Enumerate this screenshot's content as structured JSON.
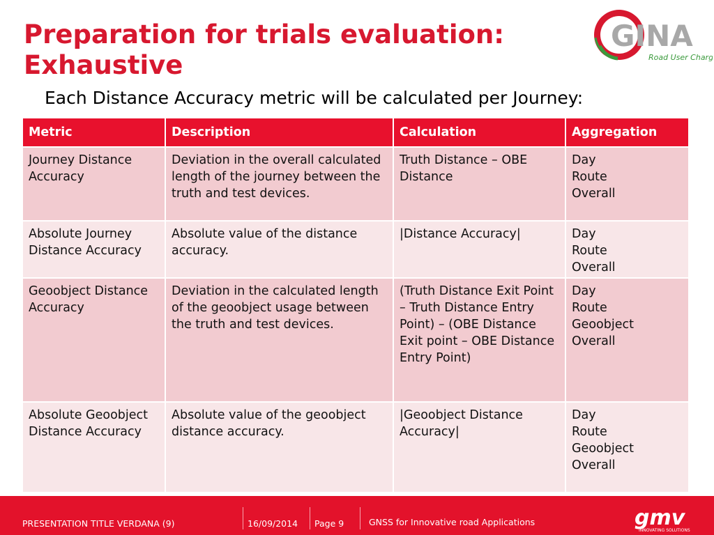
{
  "title": "Preparation for trials evaluation: Exhaustive",
  "subtitle": "Each Distance Accuracy metric will be calculated per Journey:",
  "logo": {
    "text": "GINA",
    "tagline": "Road User Charging"
  },
  "table": {
    "headers": [
      "Metric",
      "Description",
      "Calculation",
      "Aggregation"
    ],
    "rows": [
      {
        "metric": "Journey Distance Accuracy",
        "description": "Deviation in the overall calculated length of the journey between the truth and test devices.",
        "calculation": "Truth Distance – OBE Distance",
        "aggregation": [
          "Day",
          "Route",
          "Overall"
        ]
      },
      {
        "metric": "Absolute Journey Distance Accuracy",
        "description": "Absolute value of the distance accuracy.",
        "calculation": "|Distance Accuracy|",
        "aggregation": [
          "Day",
          "Route",
          "Overall"
        ]
      },
      {
        "metric": "Geoobject Distance Accuracy",
        "description": "Deviation in the calculated length of the geoobject usage between the truth and test devices.",
        "calculation": "(Truth Distance Exit Point – Truth Distance Entry Point) – (OBE Distance Exit point – OBE Distance Entry Point)",
        "aggregation": [
          "Day",
          "Route",
          "Geoobject",
          "Overall"
        ]
      },
      {
        "metric": "Absolute Geoobject Distance Accuracy",
        "description": "Absolute value of the geoobject distance accuracy.",
        "calculation": "|Geoobject Distance Accuracy|",
        "aggregation": [
          "Day",
          "Route",
          "Geoobject",
          "Overall"
        ]
      }
    ]
  },
  "footer": {
    "presentation_title": "PRESENTATION TITLE VERDANA (9)",
    "date": "16/09/2014",
    "page": "Page 9",
    "project": "GNSS for Innovative road Applications",
    "company_logo": "gmv",
    "company_tagline": "INNOVATING SOLUTIONS"
  },
  "colors": {
    "title": "#d7182f",
    "header_bg": "#e8112d",
    "row_dark": "#f2cbd0",
    "row_light": "#f8e6e8",
    "footer_bg": "#e3122b"
  }
}
